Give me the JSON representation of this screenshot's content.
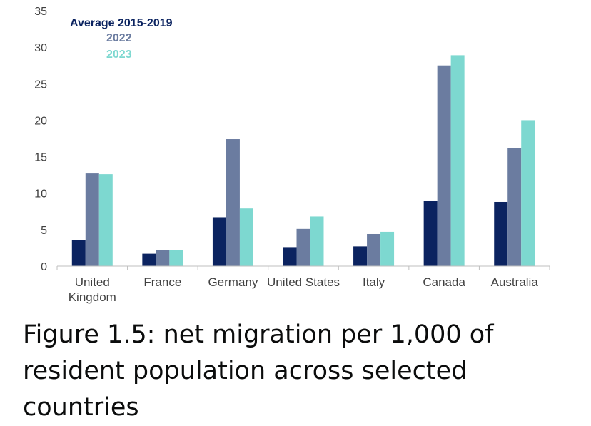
{
  "caption": "Figure 1.5: net migration per 1,000 of resident population across selected countries",
  "chart_data": {
    "type": "bar",
    "title": "",
    "xlabel": "",
    "ylabel": "",
    "ylim": [
      0,
      35
    ],
    "yticks": [
      "0",
      "5",
      "10",
      "15",
      "20",
      "25",
      "30",
      "35"
    ],
    "grid": false,
    "legend_position": "top-left",
    "categories": [
      [
        "United",
        "Kingdom"
      ],
      [
        "France"
      ],
      [
        "Germany"
      ],
      [
        "United States"
      ],
      [
        "Italy"
      ],
      [
        "Canada"
      ],
      [
        "Australia"
      ]
    ],
    "series": [
      {
        "name": "Average 2015-2019",
        "color": "#0b2360",
        "values": [
          3.6,
          1.7,
          6.7,
          2.6,
          2.7,
          8.9,
          8.8
        ]
      },
      {
        "name": "2022",
        "color": "#6b7ca0",
        "values": [
          12.7,
          2.2,
          17.4,
          5.1,
          4.4,
          27.5,
          16.2
        ]
      },
      {
        "name": "2023",
        "color": "#7dd8d0",
        "values": [
          12.6,
          2.2,
          7.9,
          6.8,
          4.7,
          28.9,
          20.0
        ]
      }
    ]
  }
}
